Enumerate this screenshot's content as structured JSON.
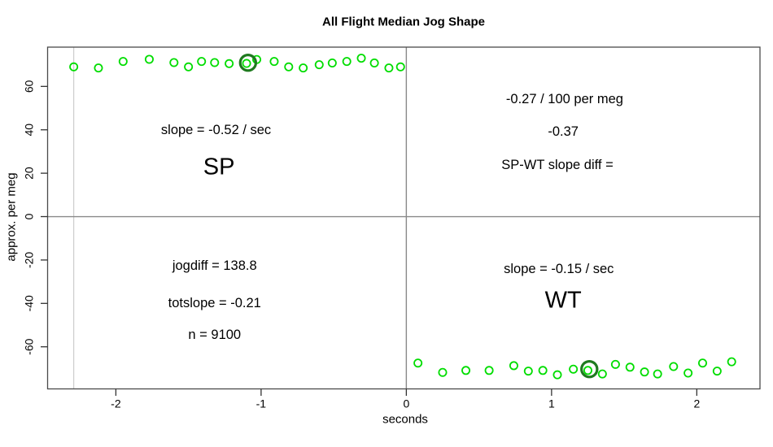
{
  "chart_data": {
    "type": "scatter",
    "title": "All Flight Median Jog Shape",
    "xlabel": "seconds",
    "ylabel": "approx. per meg",
    "xlim": [
      -2.47,
      2.435
    ],
    "ylim": [
      -79.4,
      78.1
    ],
    "x_ticks": [
      -2,
      -1,
      0,
      1,
      2
    ],
    "y_ticks": [
      60,
      40,
      20,
      0,
      -20,
      -40,
      -60
    ],
    "grid": false,
    "reference_lines": {
      "horizontal_y": 0,
      "vertical_x": 0,
      "series_start_x": -2.29
    },
    "series": [
      {
        "name": "SP",
        "marker": "open-circle",
        "points": [
          [
            -2.29,
            69.0
          ],
          [
            -2.12,
            68.5
          ],
          [
            -1.95,
            71.5
          ],
          [
            -1.77,
            72.5
          ],
          [
            -1.6,
            71.0
          ],
          [
            -1.5,
            69.0
          ],
          [
            -1.41,
            71.5
          ],
          [
            -1.32,
            71.0
          ],
          [
            -1.22,
            70.5
          ],
          [
            -1.1,
            70.6
          ],
          [
            -1.03,
            72.4
          ],
          [
            -0.91,
            71.5
          ],
          [
            -0.81,
            69.0
          ],
          [
            -0.71,
            68.5
          ],
          [
            -0.6,
            70.0
          ],
          [
            -0.51,
            70.8
          ],
          [
            -0.41,
            71.5
          ],
          [
            -0.31,
            73.0
          ],
          [
            -0.22,
            70.8
          ],
          [
            -0.12,
            68.5
          ],
          [
            -0.04,
            69.0
          ]
        ],
        "highlight_point": [
          -1.09,
          70.9
        ]
      },
      {
        "name": "WT",
        "marker": "open-circle",
        "points": [
          [
            0.08,
            -67.5
          ],
          [
            0.25,
            -71.8
          ],
          [
            0.41,
            -70.9
          ],
          [
            0.57,
            -70.9
          ],
          [
            0.74,
            -68.7
          ],
          [
            0.84,
            -71.2
          ],
          [
            0.94,
            -70.9
          ],
          [
            1.04,
            -72.9
          ],
          [
            1.15,
            -70.3
          ],
          [
            1.25,
            -70.9
          ],
          [
            1.35,
            -72.5
          ],
          [
            1.44,
            -68.1
          ],
          [
            1.54,
            -69.4
          ],
          [
            1.64,
            -71.6
          ],
          [
            1.73,
            -72.5
          ],
          [
            1.84,
            -69.1
          ],
          [
            1.94,
            -72.1
          ],
          [
            2.04,
            -67.5
          ],
          [
            2.14,
            -71.2
          ],
          [
            2.24,
            -66.9
          ]
        ],
        "highlight_point": [
          1.26,
          -70.3
        ]
      }
    ],
    "annotations": [
      {
        "id": "sp-slope",
        "text": "slope = -0.52 / sec",
        "x": -1.31,
        "y": 40.0,
        "size": "normal"
      },
      {
        "id": "sp-name",
        "text": "SP",
        "x": -1.29,
        "y": 22.5,
        "size": "large"
      },
      {
        "id": "diff-per-meg",
        "text": "-0.27 / 100 per meg",
        "x": 1.09,
        "y": 54.0,
        "size": "normal"
      },
      {
        "id": "diff-value",
        "text": "-0.37",
        "x": 1.08,
        "y": 39.0,
        "size": "normal"
      },
      {
        "id": "diff-label",
        "text": "SP-WT slope diff =",
        "x": 1.04,
        "y": 23.8,
        "size": "normal"
      },
      {
        "id": "jogdiff",
        "text": "jogdiff = 138.8",
        "x": -1.32,
        "y": -22.7,
        "size": "normal"
      },
      {
        "id": "totslope",
        "text": "totslope = -0.21",
        "x": -1.32,
        "y": -39.9,
        "size": "normal"
      },
      {
        "id": "n-count",
        "text": "n = 9100",
        "x": -1.32,
        "y": -54.5,
        "size": "normal"
      },
      {
        "id": "wt-slope",
        "text": "slope = -0.15 / sec",
        "x": 1.05,
        "y": -24.2,
        "size": "normal"
      },
      {
        "id": "wt-name",
        "text": "WT",
        "x": 1.08,
        "y": -38.8,
        "size": "large"
      }
    ],
    "colors": {
      "point": "#00dd00",
      "highlight": "#1f7a1f",
      "axis_box": "#4a4a4a",
      "tick": "#333333",
      "reference_line": "#8a8a8a",
      "series_start_line": "#cccccc",
      "background": "#ffffff",
      "text": "#000000"
    }
  }
}
